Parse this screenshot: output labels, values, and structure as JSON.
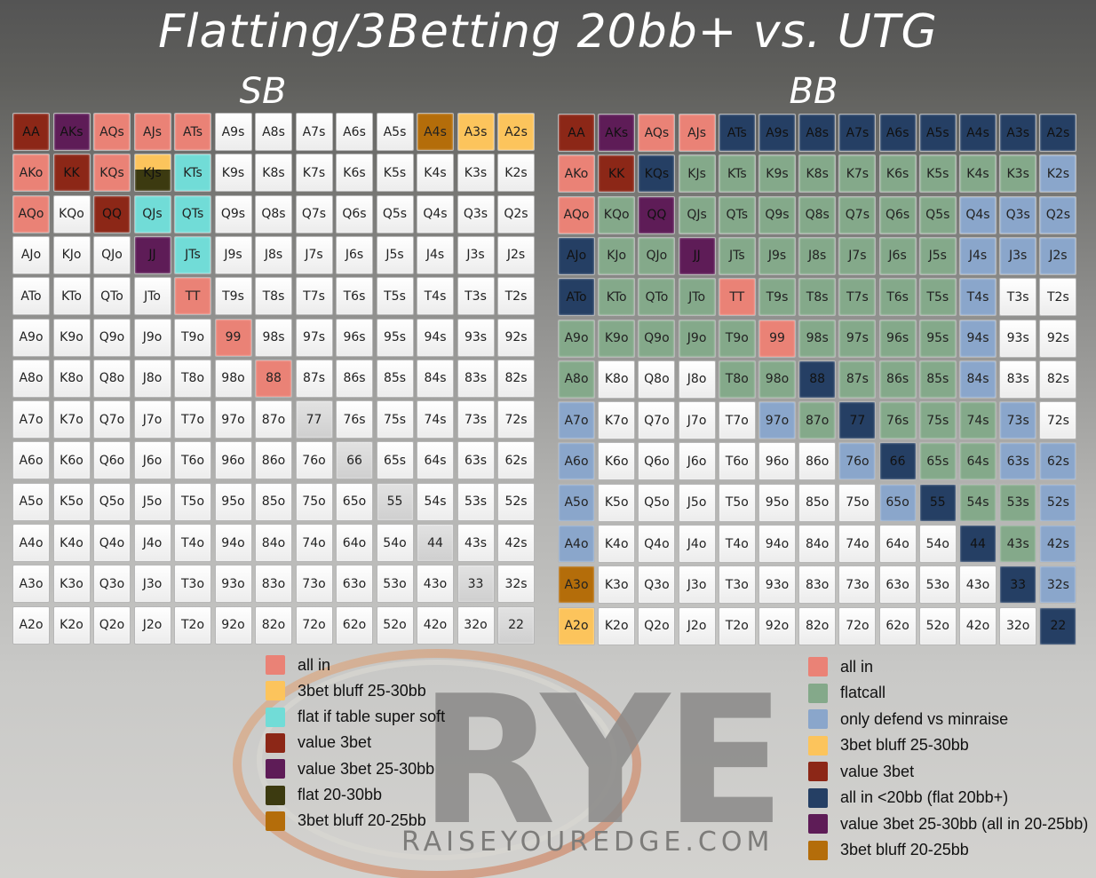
{
  "title": "Flatting/3Betting 20bb+ vs. UTG",
  "panels": {
    "sb": {
      "label": "SB",
      "hands": [
        [
          "AA",
          "AKs",
          "AQs",
          "AJs",
          "ATs",
          "A9s",
          "A8s",
          "A7s",
          "A6s",
          "A5s",
          "A4s",
          "A3s",
          "A2s"
        ],
        [
          "AKo",
          "KK",
          "KQs",
          "KJs",
          "KTs",
          "K9s",
          "K8s",
          "K7s",
          "K6s",
          "K5s",
          "K4s",
          "K3s",
          "K2s"
        ],
        [
          "AQo",
          "KQo",
          "QQ",
          "QJs",
          "QTs",
          "Q9s",
          "Q8s",
          "Q7s",
          "Q6s",
          "Q5s",
          "Q4s",
          "Q3s",
          "Q2s"
        ],
        [
          "AJo",
          "KJo",
          "QJo",
          "JJ",
          "JTs",
          "J9s",
          "J8s",
          "J7s",
          "J6s",
          "J5s",
          "J4s",
          "J3s",
          "J2s"
        ],
        [
          "ATo",
          "KTo",
          "QTo",
          "JTo",
          "TT",
          "T9s",
          "T8s",
          "T7s",
          "T6s",
          "T5s",
          "T4s",
          "T3s",
          "T2s"
        ],
        [
          "A9o",
          "K9o",
          "Q9o",
          "J9o",
          "T9o",
          "99",
          "98s",
          "97s",
          "96s",
          "95s",
          "94s",
          "93s",
          "92s"
        ],
        [
          "A8o",
          "K8o",
          "Q8o",
          "J8o",
          "T8o",
          "98o",
          "88",
          "87s",
          "86s",
          "85s",
          "84s",
          "83s",
          "82s"
        ],
        [
          "A7o",
          "K7o",
          "Q7o",
          "J7o",
          "T7o",
          "97o",
          "87o",
          "77",
          "76s",
          "75s",
          "74s",
          "73s",
          "72s"
        ],
        [
          "A6o",
          "K6o",
          "Q6o",
          "J6o",
          "T6o",
          "96o",
          "86o",
          "76o",
          "66",
          "65s",
          "64s",
          "63s",
          "62s"
        ],
        [
          "A5o",
          "K5o",
          "Q5o",
          "J5o",
          "T5o",
          "95o",
          "85o",
          "75o",
          "65o",
          "55",
          "54s",
          "53s",
          "52s"
        ],
        [
          "A4o",
          "K4o",
          "Q4o",
          "J4o",
          "T4o",
          "94o",
          "84o",
          "74o",
          "64o",
          "54o",
          "44",
          "43s",
          "42s"
        ],
        [
          "A3o",
          "K3o",
          "Q3o",
          "J3o",
          "T3o",
          "93o",
          "83o",
          "73o",
          "63o",
          "53o",
          "43o",
          "33",
          "32s"
        ],
        [
          "A2o",
          "K2o",
          "Q2o",
          "J2o",
          "T2o",
          "92o",
          "82o",
          "72o",
          "62o",
          "52o",
          "42o",
          "32o",
          "22"
        ]
      ],
      "assignments": {
        "AA": "value 3bet",
        "KK": "value 3bet",
        "QQ": "value 3bet",
        "AKo": "all in",
        "AKs": "value 3bet 25-30bb",
        "JJ": "value 3bet 25-30bb",
        "AQs": "all in",
        "AJs": "all in",
        "ATs": "all in",
        "KQs": "all in",
        "AQo": "all in",
        "TT": "all in",
        "99": "all in",
        "88": "all in",
        "A4s": "3bet bluff 20-25bb",
        "A3s": "3bet bluff 25-30bb",
        "A2s": "3bet bluff 25-30bb",
        "KJs": "flat 20-30bb",
        "KTs": "flat if table super soft",
        "QJs": "flat if table super soft",
        "QTs": "flat if table super soft",
        "JTs": "flat if table super soft"
      },
      "legend": [
        {
          "label": "all in",
          "color": "#ea8276"
        },
        {
          "label": "3bet bluff 25-30bb",
          "color": "#fcc45c"
        },
        {
          "label": "flat if table super soft",
          "color": "#71dcd7"
        },
        {
          "label": "value 3bet",
          "color": "#8c2717"
        },
        {
          "label": "value 3bet 25-30bb",
          "color": "#5e1c57"
        },
        {
          "label": "flat 20-30bb",
          "color": "#3c3a10"
        },
        {
          "label": "3bet bluff 20-25bb",
          "color": "#b46d0a"
        }
      ]
    },
    "bb": {
      "label": "BB",
      "hands": [
        [
          "AA",
          "AKs",
          "AQs",
          "AJs",
          "ATs",
          "A9s",
          "A8s",
          "A7s",
          "A6s",
          "A5s",
          "A4s",
          "A3s",
          "A2s"
        ],
        [
          "AKo",
          "KK",
          "KQs",
          "KJs",
          "KTs",
          "K9s",
          "K8s",
          "K7s",
          "K6s",
          "K5s",
          "K4s",
          "K3s",
          "K2s"
        ],
        [
          "AQo",
          "KQo",
          "QQ",
          "QJs",
          "QTs",
          "Q9s",
          "Q8s",
          "Q7s",
          "Q6s",
          "Q5s",
          "Q4s",
          "Q3s",
          "Q2s"
        ],
        [
          "AJo",
          "KJo",
          "QJo",
          "JJ",
          "JTs",
          "J9s",
          "J8s",
          "J7s",
          "J6s",
          "J5s",
          "J4s",
          "J3s",
          "J2s"
        ],
        [
          "ATo",
          "KTo",
          "QTo",
          "JTo",
          "TT",
          "T9s",
          "T8s",
          "T7s",
          "T6s",
          "T5s",
          "T4s",
          "T3s",
          "T2s"
        ],
        [
          "A9o",
          "K9o",
          "Q9o",
          "J9o",
          "T9o",
          "99",
          "98s",
          "97s",
          "96s",
          "95s",
          "94s",
          "93s",
          "92s"
        ],
        [
          "A8o",
          "K8o",
          "Q8o",
          "J8o",
          "T8o",
          "98o",
          "88",
          "87s",
          "86s",
          "85s",
          "84s",
          "83s",
          "82s"
        ],
        [
          "A7o",
          "K7o",
          "Q7o",
          "J7o",
          "T7o",
          "97o",
          "87o",
          "77",
          "76s",
          "75s",
          "74s",
          "73s",
          "72s"
        ],
        [
          "A6o",
          "K6o",
          "Q6o",
          "J6o",
          "T6o",
          "96o",
          "86o",
          "76o",
          "66",
          "65s",
          "64s",
          "63s",
          "62s"
        ],
        [
          "A5o",
          "K5o",
          "Q5o",
          "J5o",
          "T5o",
          "95o",
          "85o",
          "75o",
          "65o",
          "55",
          "54s",
          "53s",
          "52s"
        ],
        [
          "A4o",
          "K4o",
          "Q4o",
          "J4o",
          "T4o",
          "94o",
          "84o",
          "74o",
          "64o",
          "54o",
          "44",
          "43s",
          "42s"
        ],
        [
          "A3o",
          "K3o",
          "Q3o",
          "J3o",
          "T3o",
          "93o",
          "83o",
          "73o",
          "63o",
          "53o",
          "43o",
          "33",
          "32s"
        ],
        [
          "A2o",
          "K2o",
          "Q2o",
          "J2o",
          "T2o",
          "92o",
          "82o",
          "72o",
          "62o",
          "52o",
          "42o",
          "32o",
          "22"
        ]
      ],
      "assignments": {
        "AA": "value 3bet",
        "KK": "value 3bet",
        "AKs": "value 3bet 25-30bb (all in 20-25bb)",
        "QQ": "value 3bet 25-30bb (all in 20-25bb)",
        "JJ": "value 3bet 25-30bb (all in 20-25bb)",
        "AQs": "all in",
        "AJs": "all in",
        "AKo": "all in",
        "AQo": "all in",
        "TT": "all in",
        "99": "all in",
        "ATs": "all in <20bb (flat 20bb+)",
        "A9s": "all in <20bb (flat 20bb+)",
        "A8s": "all in <20bb (flat 20bb+)",
        "A7s": "all in <20bb (flat 20bb+)",
        "A6s": "all in <20bb (flat 20bb+)",
        "A5s": "all in <20bb (flat 20bb+)",
        "A4s": "all in <20bb (flat 20bb+)",
        "A3s": "all in <20bb (flat 20bb+)",
        "A2s": "all in <20bb (flat 20bb+)",
        "KQs": "all in <20bb (flat 20bb+)",
        "AJo": "all in <20bb (flat 20bb+)",
        "ATo": "all in <20bb (flat 20bb+)",
        "88": "all in <20bb (flat 20bb+)",
        "77": "all in <20bb (flat 20bb+)",
        "66": "all in <20bb (flat 20bb+)",
        "55": "all in <20bb (flat 20bb+)",
        "44": "all in <20bb (flat 20bb+)",
        "33": "all in <20bb (flat 20bb+)",
        "22": "all in <20bb (flat 20bb+)",
        "A3o": "3bet bluff 20-25bb",
        "A2o": "3bet bluff 25-30bb",
        "KJs": "flatcall",
        "KTs": "flatcall",
        "K9s": "flatcall",
        "K8s": "flatcall",
        "K7s": "flatcall",
        "K6s": "flatcall",
        "K5s": "flatcall",
        "K4s": "flatcall",
        "K3s": "flatcall",
        "KQo": "flatcall",
        "QJs": "flatcall",
        "QTs": "flatcall",
        "Q9s": "flatcall",
        "Q8s": "flatcall",
        "Q7s": "flatcall",
        "Q6s": "flatcall",
        "Q5s": "flatcall",
        "KJo": "flatcall",
        "QJo": "flatcall",
        "JTs": "flatcall",
        "J9s": "flatcall",
        "J8s": "flatcall",
        "J7s": "flatcall",
        "J6s": "flatcall",
        "J5s": "flatcall",
        "KTo": "flatcall",
        "QTo": "flatcall",
        "JTo": "flatcall",
        "T9s": "flatcall",
        "T8s": "flatcall",
        "T7s": "flatcall",
        "T6s": "flatcall",
        "T5s": "flatcall",
        "A9o": "flatcall",
        "K9o": "flatcall",
        "Q9o": "flatcall",
        "J9o": "flatcall",
        "T9o": "flatcall",
        "98s": "flatcall",
        "97s": "flatcall",
        "96s": "flatcall",
        "95s": "flatcall",
        "A8o": "flatcall",
        "T8o": "flatcall",
        "98o": "flatcall",
        "87s": "flatcall",
        "86s": "flatcall",
        "85s": "flatcall",
        "87o": "flatcall",
        "76s": "flatcall",
        "75s": "flatcall",
        "74s": "flatcall",
        "65s": "flatcall",
        "64s": "flatcall",
        "54s": "flatcall",
        "53s": "flatcall",
        "43s": "flatcall",
        "K2s": "only defend vs minraise",
        "Q4s": "only defend vs minraise",
        "Q3s": "only defend vs minraise",
        "Q2s": "only defend vs minraise",
        "J4s": "only defend vs minraise",
        "J3s": "only defend vs minraise",
        "J2s": "only defend vs minraise",
        "T4s": "only defend vs minraise",
        "94s": "only defend vs minraise",
        "84s": "only defend vs minraise",
        "73s": "only defend vs minraise",
        "63s": "only defend vs minraise",
        "62s": "only defend vs minraise",
        "52s": "only defend vs minraise",
        "42s": "only defend vs minraise",
        "32s": "only defend vs minraise",
        "A7o": "only defend vs minraise",
        "97o": "only defend vs minraise",
        "A6o": "only defend vs minraise",
        "76o": "only defend vs minraise",
        "A5o": "only defend vs minraise",
        "65o": "only defend vs minraise",
        "A4o": "only defend vs minraise"
      },
      "legend": [
        {
          "label": "all in",
          "color": "#ea8276"
        },
        {
          "label": "flatcall",
          "color": "#84a98a"
        },
        {
          "label": "only defend vs minraise",
          "color": "#8aa6cb"
        },
        {
          "label": "3bet bluff 25-30bb",
          "color": "#fcc45c"
        },
        {
          "label": "value 3bet",
          "color": "#8c2717"
        },
        {
          "label": "all in <20bb (flat 20bb+)",
          "color": "#253f64"
        },
        {
          "label": "value 3bet 25-30bb (all in 20-25bb)",
          "color": "#5e1c57"
        },
        {
          "label": "3bet bluff 20-25bb",
          "color": "#b46d0a"
        }
      ]
    }
  },
  "logo": {
    "wordmark": "RYE",
    "url_text": "RAISEYOUREDGE.COM"
  },
  "chart_data": [
    {
      "type": "heatmap",
      "title": "SB",
      "rows": [
        "A",
        "K",
        "Q",
        "J",
        "T",
        "9",
        "8",
        "7",
        "6",
        "5",
        "4",
        "3",
        "2"
      ],
      "cols": [
        "A",
        "K",
        "Q",
        "J",
        "T",
        "9",
        "8",
        "7",
        "6",
        "5",
        "4",
        "3",
        "2"
      ],
      "legend": [
        "all in",
        "3bet bluff 25-30bb",
        "flat if table super soft",
        "value 3bet",
        "value 3bet 25-30bb",
        "flat 20-30bb",
        "3bet bluff 20-25bb"
      ]
    },
    {
      "type": "heatmap",
      "title": "BB",
      "rows": [
        "A",
        "K",
        "Q",
        "J",
        "T",
        "9",
        "8",
        "7",
        "6",
        "5",
        "4",
        "3",
        "2"
      ],
      "cols": [
        "A",
        "K",
        "Q",
        "J",
        "T",
        "9",
        "8",
        "7",
        "6",
        "5",
        "4",
        "3",
        "2"
      ],
      "legend": [
        "all in",
        "flatcall",
        "only defend vs minraise",
        "3bet bluff 25-30bb",
        "value 3bet",
        "all in <20bb (flat 20bb+)",
        "value 3bet 25-30bb (all in 20-25bb)",
        "3bet bluff 20-25bb"
      ]
    }
  ]
}
